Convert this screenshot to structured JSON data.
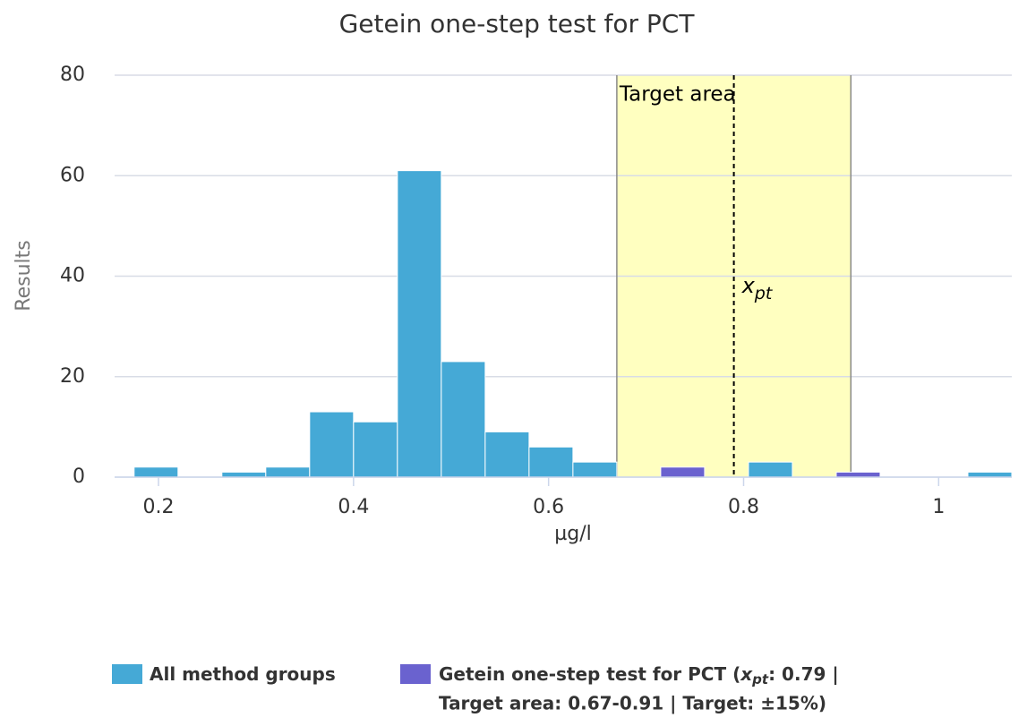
{
  "chart_data": {
    "type": "histogram",
    "title": "Getein one-step test for PCT",
    "x_label": "µg/l",
    "y_label": "Results",
    "bins": [
      0.175,
      0.22,
      0.265,
      0.31,
      0.355,
      0.4,
      0.445,
      0.49,
      0.535,
      0.58,
      0.625,
      0.67,
      0.715,
      0.76,
      0.805,
      0.85,
      0.895,
      0.94,
      0.985,
      1.03,
      1.075
    ],
    "series": [
      {
        "name": "All method groups",
        "color": "#45a9d6",
        "values": [
          2,
          0,
          1,
          2,
          13,
          11,
          61,
          23,
          9,
          6,
          3,
          0,
          0,
          0,
          3,
          0,
          0,
          0,
          0,
          1
        ]
      },
      {
        "name": "Getein one-step test for PCT",
        "color": "#6a62cf",
        "values": [
          0,
          0,
          0,
          0,
          0,
          0,
          0,
          0,
          0,
          0,
          0,
          0,
          2,
          0,
          0,
          0,
          1,
          0,
          0,
          0
        ]
      }
    ],
    "stacked": true,
    "xlim": [
      0.155,
      1.075
    ],
    "xticks": [
      0.2,
      0.4,
      0.6,
      0.8,
      1
    ],
    "ylim": [
      0,
      80
    ],
    "yticks": [
      0,
      20,
      40,
      60,
      80
    ],
    "grid": true,
    "target_area": {
      "range": [
        0.67,
        0.91
      ],
      "label": "Target area",
      "color": "#ffffc0"
    },
    "xpt": {
      "value": 0.79,
      "symbol": "x",
      "sub": "pt"
    },
    "legend_note": {
      "open": "(",
      "symbol": "x",
      "sub": "pt",
      "line1": ": 0.79 |",
      "line2": "Target area: 0.67-0.91 | Target: ±15%)"
    },
    "legend": "bottom-left"
  }
}
